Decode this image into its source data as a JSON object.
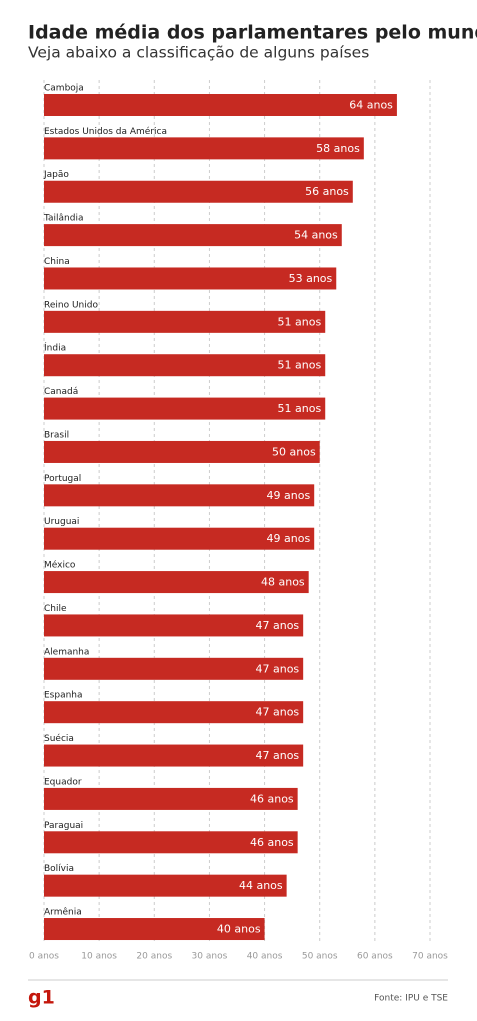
{
  "chart_data": {
    "type": "bar",
    "orientation": "horizontal",
    "title": "Idade média dos parlamentares pelo mundo",
    "subtitle": "Veja abaixo a classificação de alguns países",
    "categories": [
      "Camboja",
      "Estados Unidos da América",
      "Japão",
      "Tailândia",
      "China",
      "Reino Unido",
      "Índia",
      "Canadá",
      "Brasil",
      "Portugal",
      "Uruguai",
      "México",
      "Chile",
      "Alemanha",
      "Espanha",
      "Suécia",
      "Equador",
      "Paraguai",
      "Bolívia",
      "Armênia"
    ],
    "values": [
      64,
      58,
      56,
      54,
      53,
      51,
      51,
      51,
      50,
      49,
      49,
      48,
      47,
      47,
      47,
      47,
      46,
      46,
      44,
      40
    ],
    "value_labels": [
      "64 anos",
      "58 anos",
      "56 anos",
      "54 anos",
      "53 anos",
      "51 anos",
      "51 anos",
      "51 anos",
      "50 anos",
      "49 anos",
      "49 anos",
      "48 anos",
      "47 anos",
      "47 anos",
      "47 anos",
      "47 anos",
      "46 anos",
      "46 anos",
      "44 anos",
      "40 anos"
    ],
    "color": "#c62a22",
    "xlim": [
      0,
      70
    ],
    "xticks": [
      {
        "value": 0,
        "label": "0 anos"
      },
      {
        "value": 10,
        "label": "10 anos"
      },
      {
        "value": 20,
        "label": "20 anos"
      },
      {
        "value": 30,
        "label": "30 anos"
      },
      {
        "value": 40,
        "label": "40 anos"
      },
      {
        "value": 50,
        "label": "50 anos"
      },
      {
        "value": 60,
        "label": "60 anos"
      },
      {
        "value": 70,
        "label": "70 anos"
      }
    ],
    "grid": true,
    "logo": "g1",
    "source": "Fonte: IPU e TSE"
  }
}
